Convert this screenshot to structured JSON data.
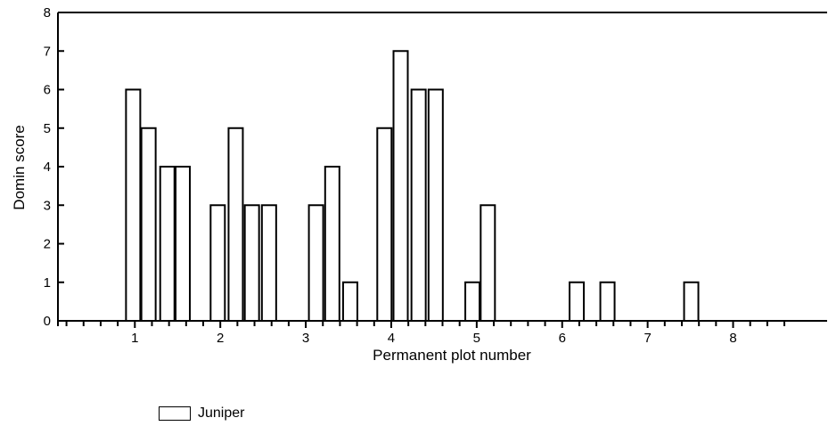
{
  "chart_data": {
    "type": "bar",
    "xlabel": "Permanent plot number",
    "ylabel": "Domin score",
    "ylim": [
      0,
      8
    ],
    "yticks": [
      "0",
      "1",
      "2",
      "3",
      "4",
      "5",
      "6",
      "7",
      "8"
    ],
    "xticks": [
      "1",
      "2",
      "3",
      "4",
      "5",
      "6",
      "7",
      "8"
    ],
    "xlim": [
      0.1,
      9.1
    ],
    "grid": false,
    "legend_position": "bottom-left",
    "series": [
      {
        "name": "Juniper",
        "x": [
          0.98,
          1.16,
          1.38,
          1.56,
          1.97,
          2.18,
          2.37,
          2.57,
          3.12,
          3.31,
          3.52,
          3.92,
          4.11,
          4.32,
          4.52,
          4.95,
          5.13,
          6.17,
          6.53,
          7.51
        ],
        "values": [
          6,
          5,
          4,
          4,
          3,
          5,
          3,
          3,
          3,
          4,
          1,
          5,
          7,
          6,
          6,
          1,
          3,
          1,
          1,
          1
        ]
      }
    ]
  }
}
